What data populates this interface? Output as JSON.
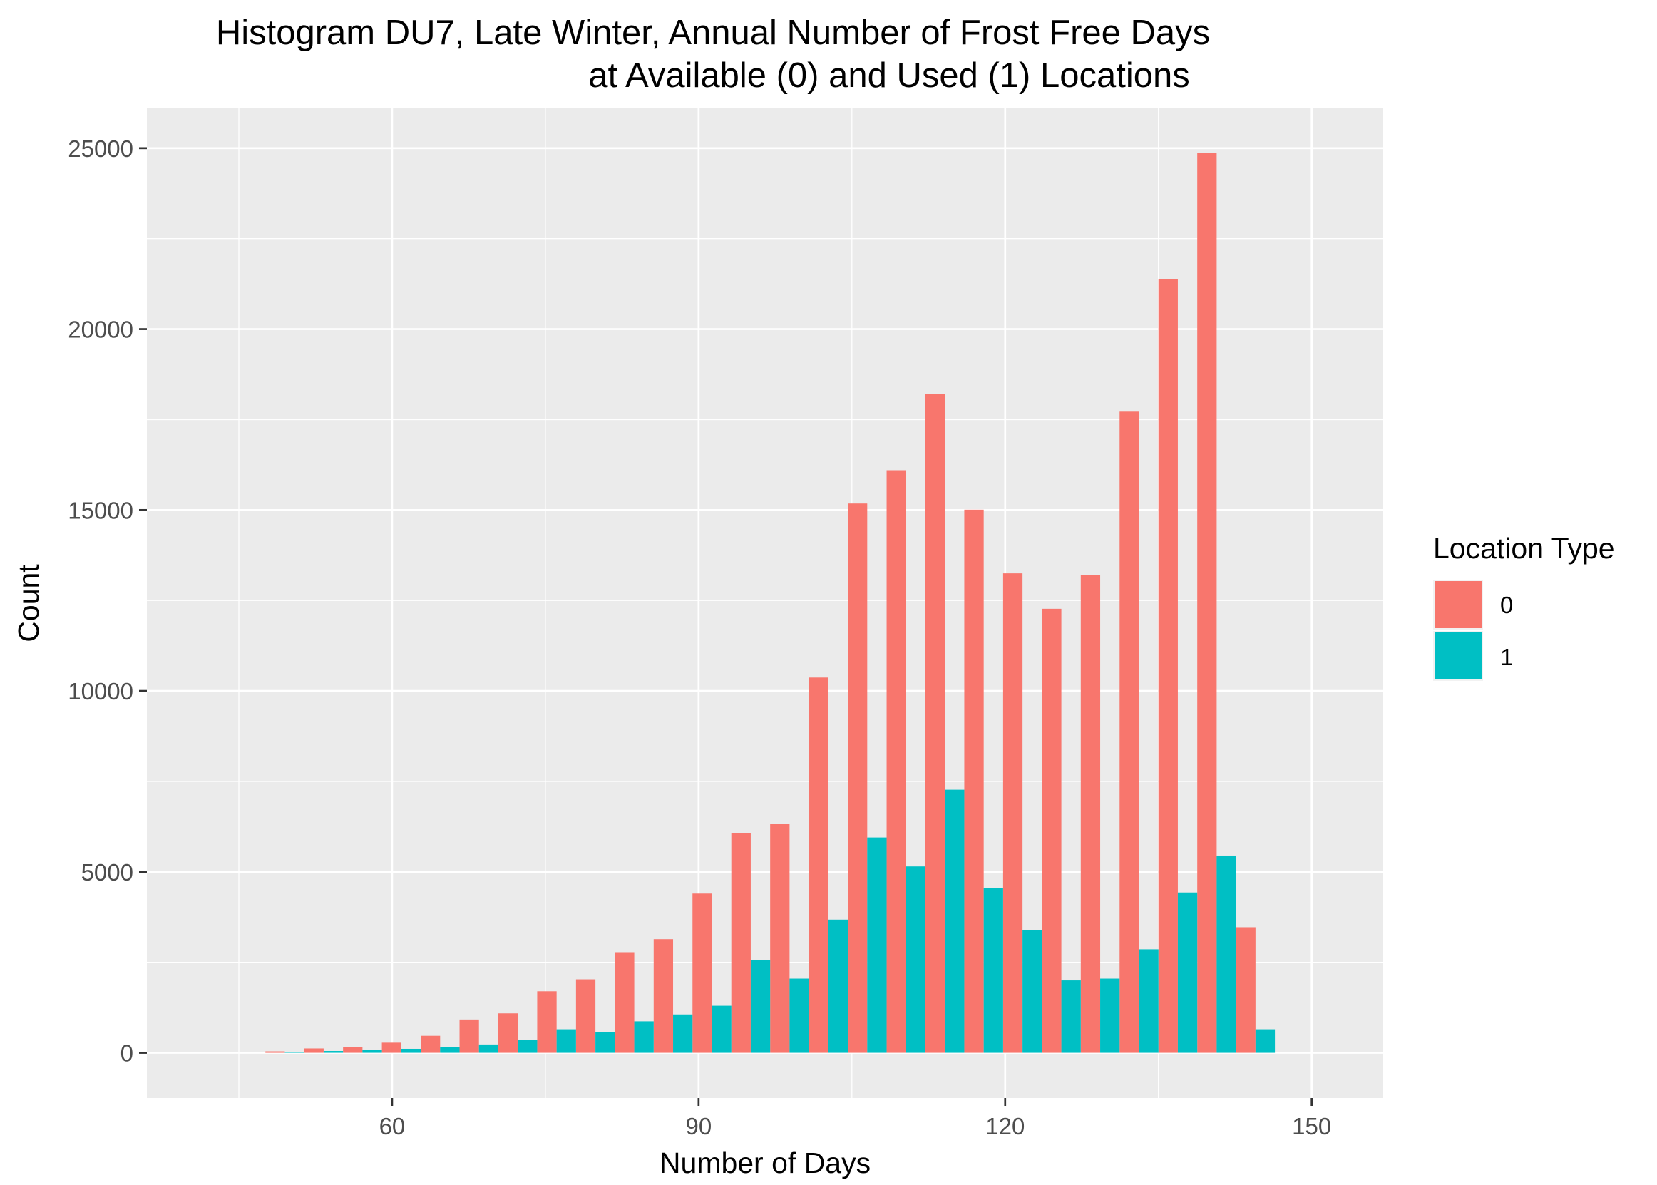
{
  "chart_data": {
    "type": "bar",
    "title_line1": "Histogram DU7, Late Winter, Annual Number of Frost Free Days",
    "title_line2": "at Available (0) and Used (1) Locations",
    "xlabel": "Number of Days",
    "ylabel": "Count",
    "xlim": [
      36,
      157
    ],
    "ylim": [
      -1250,
      26100
    ],
    "x_ticks": [
      60,
      90,
      120,
      150
    ],
    "x_tick_labels": [
      "60",
      "90",
      "120",
      "150"
    ],
    "y_ticks": [
      0,
      5000,
      10000,
      15000,
      20000,
      25000
    ],
    "y_tick_labels": [
      "0",
      "5000",
      "10000",
      "15000",
      "20000",
      "25000"
    ],
    "bin_width": 3.8,
    "grid": true,
    "panel_background": "#ebebeb",
    "legend": {
      "title": "Location Type",
      "position": "right",
      "entries": [
        {
          "label": "0",
          "color": "#f8766d"
        },
        {
          "label": "1",
          "color": "#00bfc4"
        }
      ]
    },
    "bin_centers": [
      49.5,
      53.3,
      57.1,
      60.9,
      64.7,
      68.5,
      72.3,
      76.1,
      79.9,
      83.7,
      87.5,
      91.3,
      95.1,
      98.9,
      102.7,
      106.5,
      110.3,
      114.1,
      117.9,
      121.7,
      125.5,
      129.3,
      133.1,
      136.9,
      140.7,
      144.5,
      148.3
    ],
    "series": [
      {
        "name": "0",
        "color": "#f8766d",
        "values": [
          40,
          120,
          160,
          280,
          470,
          920,
          1090,
          1700,
          2030,
          2780,
          3140,
          4400,
          6070,
          6330,
          10370,
          15180,
          16100,
          18200,
          15010,
          13250,
          12270,
          13210,
          17720,
          21380,
          24870,
          3470,
          0
        ]
      },
      {
        "name": "1",
        "color": "#00bfc4",
        "values": [
          10,
          50,
          80,
          110,
          160,
          230,
          350,
          650,
          570,
          870,
          1060,
          1300,
          2570,
          2050,
          3680,
          5950,
          5150,
          7270,
          4560,
          3400,
          2000,
          2050,
          2860,
          4430,
          5450,
          650,
          0
        ]
      }
    ]
  }
}
